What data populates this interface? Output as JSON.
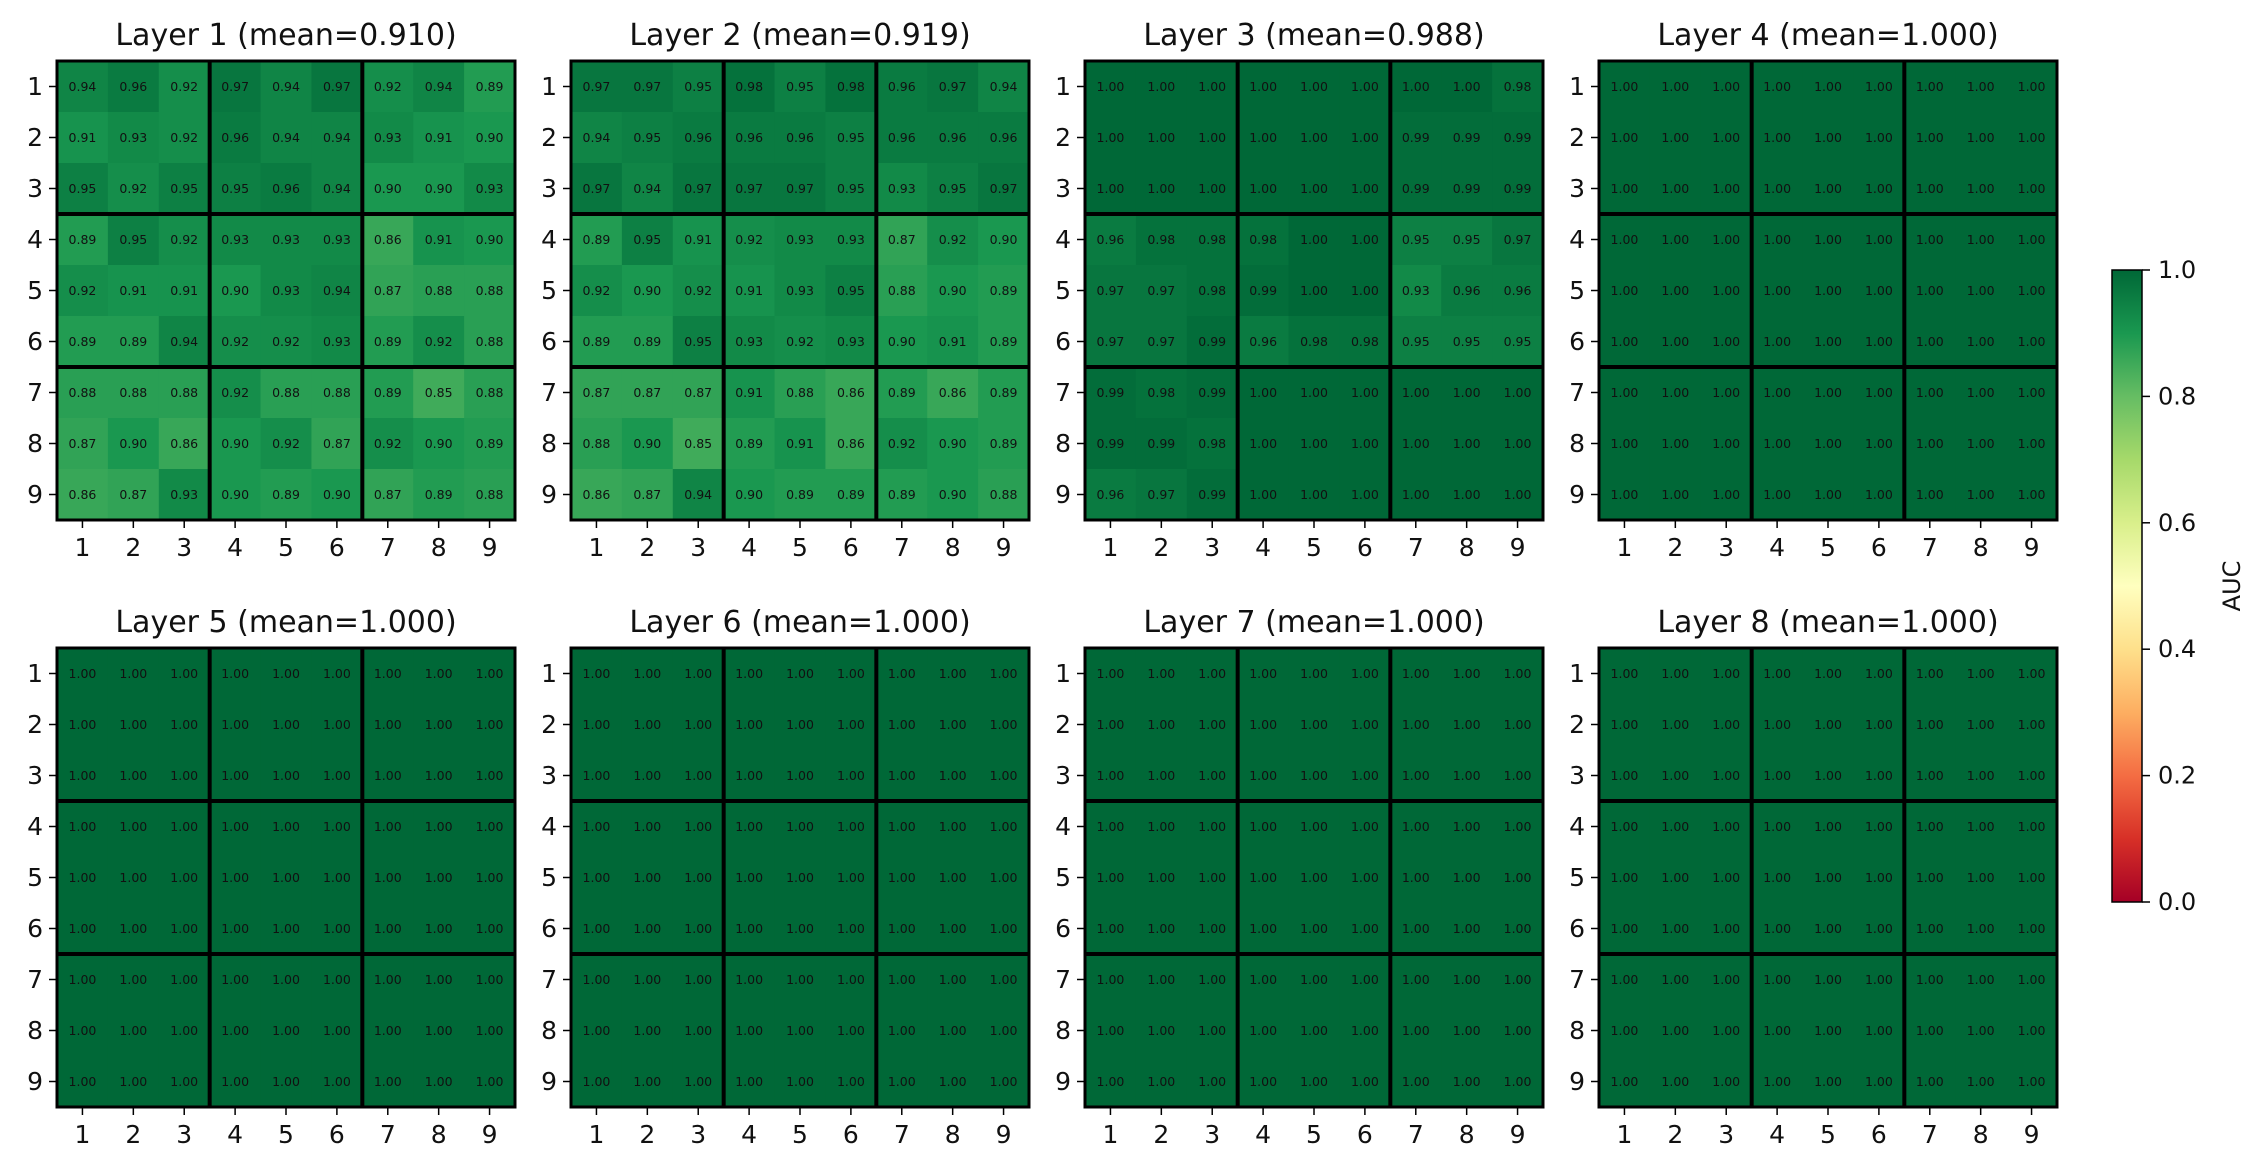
{
  "chart_data": {
    "type": "heatmap",
    "panels": [
      {
        "title": "Layer 1 (mean=0.910)",
        "values": [
          [
            0.94,
            0.96,
            0.92,
            0.97,
            0.94,
            0.97,
            0.92,
            0.94,
            0.89
          ],
          [
            0.91,
            0.93,
            0.92,
            0.96,
            0.94,
            0.94,
            0.93,
            0.91,
            0.9
          ],
          [
            0.95,
            0.92,
            0.95,
            0.95,
            0.96,
            0.94,
            0.9,
            0.9,
            0.93
          ],
          [
            0.89,
            0.95,
            0.92,
            0.93,
            0.93,
            0.93,
            0.86,
            0.91,
            0.9
          ],
          [
            0.92,
            0.91,
            0.91,
            0.9,
            0.93,
            0.94,
            0.87,
            0.88,
            0.88
          ],
          [
            0.89,
            0.89,
            0.94,
            0.92,
            0.92,
            0.93,
            0.89,
            0.92,
            0.88
          ],
          [
            0.88,
            0.88,
            0.88,
            0.92,
            0.88,
            0.88,
            0.89,
            0.85,
            0.88
          ],
          [
            0.87,
            0.9,
            0.86,
            0.9,
            0.92,
            0.87,
            0.92,
            0.9,
            0.89
          ],
          [
            0.86,
            0.87,
            0.93,
            0.9,
            0.89,
            0.9,
            0.87,
            0.89,
            0.88
          ]
        ]
      },
      {
        "title": "Layer 2 (mean=0.919)",
        "values": [
          [
            0.97,
            0.97,
            0.95,
            0.98,
            0.95,
            0.98,
            0.96,
            0.97,
            0.94
          ],
          [
            0.94,
            0.95,
            0.96,
            0.96,
            0.96,
            0.95,
            0.96,
            0.96,
            0.96
          ],
          [
            0.97,
            0.94,
            0.97,
            0.97,
            0.97,
            0.95,
            0.93,
            0.95,
            0.97
          ],
          [
            0.89,
            0.95,
            0.91,
            0.92,
            0.93,
            0.93,
            0.87,
            0.92,
            0.9
          ],
          [
            0.92,
            0.9,
            0.92,
            0.91,
            0.93,
            0.95,
            0.88,
            0.9,
            0.89
          ],
          [
            0.89,
            0.89,
            0.95,
            0.93,
            0.92,
            0.93,
            0.9,
            0.91,
            0.89
          ],
          [
            0.87,
            0.87,
            0.87,
            0.91,
            0.88,
            0.86,
            0.89,
            0.86,
            0.89
          ],
          [
            0.88,
            0.9,
            0.85,
            0.89,
            0.91,
            0.86,
            0.92,
            0.9,
            0.89
          ],
          [
            0.86,
            0.87,
            0.94,
            0.9,
            0.89,
            0.89,
            0.89,
            0.9,
            0.88
          ]
        ]
      },
      {
        "title": "Layer 3 (mean=0.988)",
        "values": [
          [
            1.0,
            1.0,
            1.0,
            1.0,
            1.0,
            1.0,
            1.0,
            1.0,
            0.98
          ],
          [
            1.0,
            1.0,
            1.0,
            1.0,
            1.0,
            1.0,
            0.99,
            0.99,
            0.99
          ],
          [
            1.0,
            1.0,
            1.0,
            1.0,
            1.0,
            1.0,
            0.99,
            0.99,
            0.99
          ],
          [
            0.96,
            0.98,
            0.98,
            0.98,
            1.0,
            1.0,
            0.95,
            0.95,
            0.97
          ],
          [
            0.97,
            0.97,
            0.98,
            0.99,
            1.0,
            1.0,
            0.93,
            0.96,
            0.96
          ],
          [
            0.97,
            0.97,
            0.99,
            0.96,
            0.98,
            0.98,
            0.95,
            0.95,
            0.95
          ],
          [
            0.99,
            0.98,
            0.99,
            1.0,
            1.0,
            1.0,
            1.0,
            1.0,
            1.0
          ],
          [
            0.99,
            0.99,
            0.98,
            1.0,
            1.0,
            1.0,
            1.0,
            1.0,
            1.0
          ],
          [
            0.96,
            0.97,
            0.99,
            1.0,
            1.0,
            1.0,
            1.0,
            1.0,
            1.0
          ]
        ]
      },
      {
        "title": "Layer 4 (mean=1.000)",
        "fill": 1.0
      },
      {
        "title": "Layer 5 (mean=1.000)",
        "fill": 1.0
      },
      {
        "title": "Layer 6 (mean=1.000)",
        "fill": 1.0
      },
      {
        "title": "Layer 7 (mean=1.000)",
        "fill": 1.0
      },
      {
        "title": "Layer 8 (mean=1.000)",
        "fill": 1.0
      }
    ],
    "x_tick_labels": [
      "1",
      "2",
      "3",
      "4",
      "5",
      "6",
      "7",
      "8",
      "9"
    ],
    "y_tick_labels": [
      "1",
      "2",
      "3",
      "4",
      "5",
      "6",
      "7",
      "8",
      "9"
    ],
    "colorbar": {
      "label": "AUC",
      "range": [
        0,
        1
      ],
      "ticks": [
        "0.0",
        "0.2",
        "0.4",
        "0.6",
        "0.8",
        "1.0"
      ],
      "colormap": "RdYlGn"
    }
  }
}
